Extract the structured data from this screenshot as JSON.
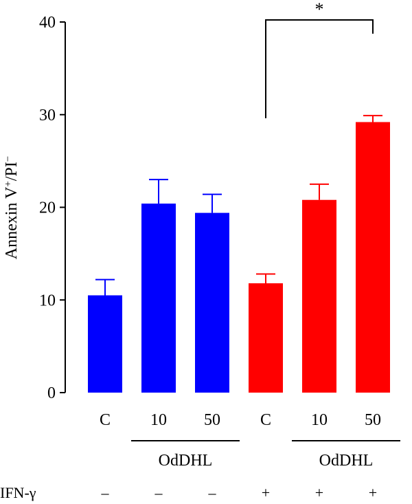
{
  "chart_data": {
    "type": "bar",
    "ylabel": {
      "base": "Annexin V",
      "sup1": "+",
      "mid": "/PI",
      "sup2": "−"
    },
    "ylim": [
      0,
      40
    ],
    "yticks": [
      0,
      10,
      20,
      30,
      40
    ],
    "categories": [
      "C",
      "10",
      "50",
      "C",
      "10",
      "50"
    ],
    "values": [
      10.5,
      20.4,
      19.4,
      11.8,
      20.8,
      29.2
    ],
    "errors": [
      1.7,
      2.6,
      2.0,
      1.0,
      1.7,
      0.7
    ],
    "bar_colors": [
      "#0000ff",
      "#0000ff",
      "#0000ff",
      "#ff0000",
      "#ff0000",
      "#ff0000"
    ],
    "groups": [
      {
        "label": "OdDHL",
        "from": 1,
        "to": 2
      },
      {
        "label": "OdDHL",
        "from": 4,
        "to": 5
      }
    ],
    "ifn": {
      "label": "IFN-γ",
      "signs": [
        "–",
        "–",
        "–",
        "+",
        "+",
        "+"
      ]
    },
    "significance": {
      "from": 3,
      "to": 5,
      "label": "*"
    }
  }
}
